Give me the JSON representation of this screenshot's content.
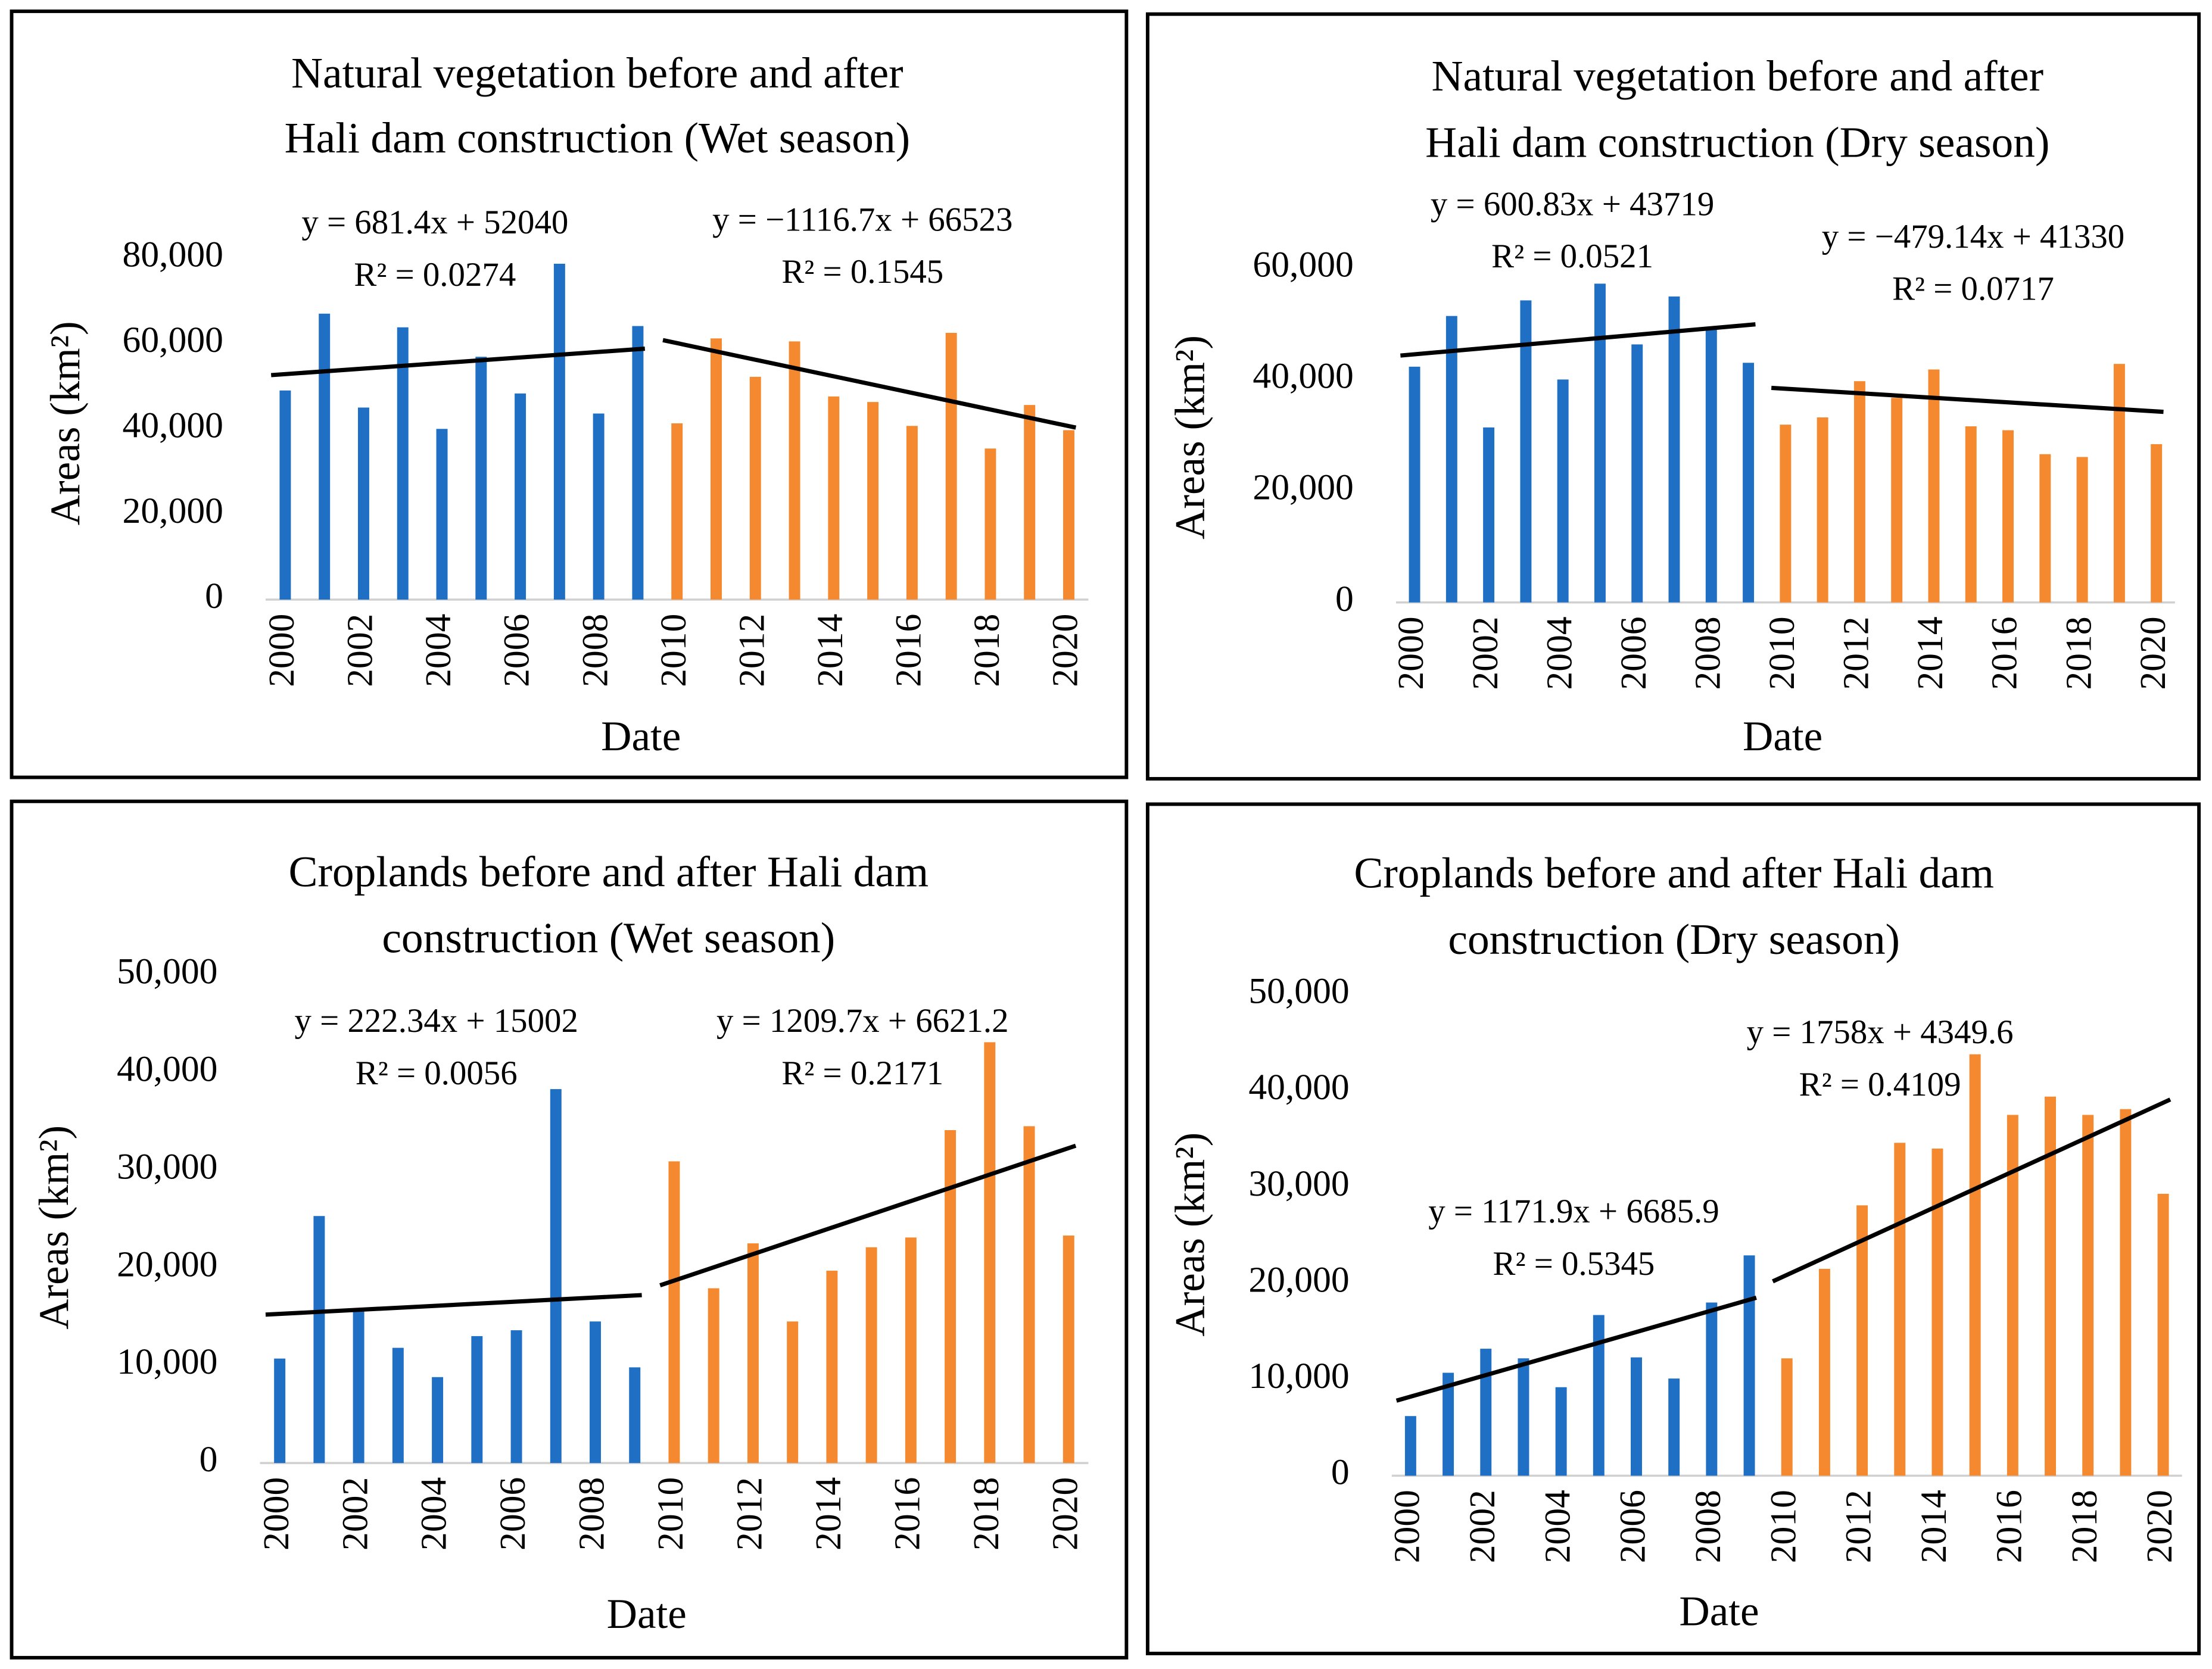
{
  "chart_data": [
    {
      "type": "bar",
      "title": [
        "Natural vegetation before and after",
        "Hali dam construction (Wet season)"
      ],
      "x_label": "Date",
      "y_label": "Areas (km²)",
      "categories": [
        "2000",
        null,
        "2002",
        null,
        "2004",
        null,
        "2006",
        null,
        "2008",
        null,
        "2010",
        null,
        "2012",
        null,
        "2014",
        null,
        "2016",
        null,
        "2018",
        null,
        "2020"
      ],
      "ylim": [
        0,
        80000
      ],
      "yticks": [
        0,
        {
          "value": 20000,
          "label": "20,000"
        },
        {
          "value": 40000,
          "label": "40,000"
        },
        {
          "value": 60000,
          "label": "60,000"
        },
        {
          "value": 80000,
          "label": "80,000"
        }
      ],
      "series": [
        {
          "color": "#1f6fc5",
          "values": [
            49000,
            67000,
            45000,
            63800,
            40000,
            56900,
            48300,
            78700,
            43600,
            64100,
            null,
            null,
            null,
            null,
            null,
            null,
            null,
            null,
            null,
            null,
            null
          ],
          "trendline": {
            "equation": "y = 681.4x + 52040",
            "r_squared": "R² = 0.0274",
            "start": 52600,
            "end": 58800
          }
        },
        {
          "color": "#f5892f",
          "values": [
            null,
            null,
            null,
            null,
            null,
            null,
            null,
            null,
            null,
            null,
            41300,
            61200,
            52200,
            60500,
            47600,
            46300,
            40700,
            62500,
            35400,
            45600,
            39700
          ],
          "trendline": {
            "equation": "y = −1116.7x + 66523",
            "r_squared": "R² = 0.1545",
            "start": 60800,
            "end": 40300
          }
        }
      ]
    },
    {
      "type": "bar",
      "title": [
        "Natural vegetation before and after",
        "Hali dam construction (Dry season)"
      ],
      "x_label": "Date",
      "y_label": "Areas (km²)",
      "categories": [
        "2000",
        null,
        "2002",
        null,
        "2004",
        null,
        "2006",
        null,
        "2008",
        null,
        "2010",
        null,
        "2012",
        null,
        "2014",
        null,
        "2016",
        null,
        "2018",
        null,
        "2020"
      ],
      "ylim": [
        0,
        60000
      ],
      "yticks": [
        0,
        {
          "value": 20000,
          "label": "20,000"
        },
        {
          "value": 40000,
          "label": "40,000"
        },
        {
          "value": 60000,
          "label": "60,000"
        }
      ],
      "series": [
        {
          "color": "#1f6fc5",
          "values": [
            42300,
            51400,
            31400,
            54200,
            40000,
            57200,
            46300,
            54900,
            49100,
            43000,
            null,
            null,
            null,
            null,
            null,
            null,
            null,
            null,
            null,
            null,
            null
          ],
          "trendline": {
            "equation": "y = 600.83x + 43719",
            "r_squared": "R² = 0.0521",
            "start": 44300,
            "end": 49900
          }
        },
        {
          "color": "#f5892f",
          "values": [
            null,
            null,
            null,
            null,
            null,
            null,
            null,
            null,
            null,
            null,
            31900,
            33200,
            39700,
            36700,
            41800,
            31600,
            30900,
            26600,
            26100,
            42800,
            28400
          ],
          "trendline": {
            "equation": "y = −479.14x + 41330",
            "r_squared": "R² = 0.0717",
            "start": 38500,
            "end": 34200
          }
        }
      ]
    },
    {
      "type": "bar",
      "title": [
        "Croplands before and after Hali dam",
        "construction (Wet season)"
      ],
      "x_label": "Date",
      "y_label": "Areas (km²)",
      "categories": [
        "2000",
        null,
        "2002",
        null,
        "2004",
        null,
        "2006",
        null,
        "2008",
        null,
        "2010",
        null,
        "2012",
        null,
        "2014",
        null,
        "2016",
        null,
        "2018",
        null,
        "2020"
      ],
      "ylim": [
        0,
        50000
      ],
      "yticks": [
        0,
        {
          "value": 10000,
          "label": "10,000"
        },
        {
          "value": 20000,
          "label": "20,000"
        },
        {
          "value": 30000,
          "label": "30,000"
        },
        {
          "value": 40000,
          "label": "40,000"
        },
        {
          "value": 50000,
          "label": "50,000"
        }
      ],
      "series": [
        {
          "color": "#1f6fc5",
          "values": [
            10700,
            25300,
            15800,
            11800,
            8800,
            13000,
            13600,
            38300,
            14500,
            9800,
            null,
            null,
            null,
            null,
            null,
            null,
            null,
            null,
            null,
            null,
            null
          ],
          "trendline": {
            "equation": "y = 222.34x + 15002",
            "r_squared": "R² = 0.0056",
            "start": 15200,
            "end": 17200
          }
        },
        {
          "color": "#f5892f",
          "values": [
            null,
            null,
            null,
            null,
            null,
            null,
            null,
            null,
            null,
            null,
            30900,
            17900,
            22500,
            14500,
            19700,
            22100,
            23100,
            34100,
            43100,
            34500,
            23300
          ],
          "trendline": {
            "equation": "y = 1209.7x + 6621.2",
            "r_squared": "R² = 0.2171",
            "start": 18200,
            "end": 32500
          }
        }
      ]
    },
    {
      "type": "bar",
      "title": [
        "Croplands before and after Hali dam",
        "construction (Dry season)"
      ],
      "x_label": "Date",
      "y_label": "Areas (km²)",
      "categories": [
        "2000",
        null,
        "2002",
        null,
        "2004",
        null,
        "2006",
        null,
        "2008",
        null,
        "2010",
        null,
        "2012",
        null,
        "2014",
        null,
        "2016",
        null,
        "2018",
        null,
        "2020"
      ],
      "ylim": [
        0,
        50000
      ],
      "yticks": [
        0,
        {
          "value": 10000,
          "label": "10,000"
        },
        {
          "value": 20000,
          "label": "20,000"
        },
        {
          "value": 30000,
          "label": "30,000"
        },
        {
          "value": 40000,
          "label": "40,000"
        },
        {
          "value": 50000,
          "label": "50,000"
        }
      ],
      "series": [
        {
          "color": "#1f6fc5",
          "values": [
            6200,
            10700,
            13200,
            12200,
            9200,
            16700,
            12300,
            10100,
            18000,
            22900,
            null,
            null,
            null,
            null,
            null,
            null,
            null,
            null,
            null,
            null,
            null
          ],
          "trendline": {
            "equation": "y = 1171.9x + 6685.9",
            "r_squared": "R² = 0.5345",
            "start": 7800,
            "end": 18500
          }
        },
        {
          "color": "#f5892f",
          "values": [
            null,
            null,
            null,
            null,
            null,
            null,
            null,
            null,
            null,
            null,
            12200,
            21500,
            28100,
            34600,
            34000,
            43800,
            37500,
            39400,
            37500,
            38100,
            29300
          ],
          "trendline": {
            "equation": "y = 1758x + 4349.6",
            "r_squared": "R² = 0.4109",
            "start": 20200,
            "end": 39100
          }
        }
      ]
    }
  ]
}
